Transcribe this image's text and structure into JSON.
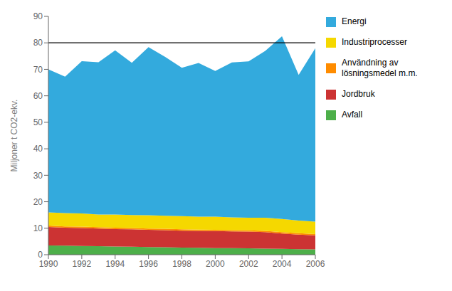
{
  "chart_data": {
    "type": "area",
    "stacked": true,
    "grid": false,
    "legend": "right",
    "ylabel": "Miljoner t CO2-ekv.",
    "x": [
      1990,
      1991,
      1992,
      1993,
      1994,
      1995,
      1996,
      1997,
      1998,
      1999,
      2000,
      2001,
      2002,
      2003,
      2004,
      2005,
      2006
    ],
    "xlim": [
      1990,
      2006
    ],
    "xticks": [
      1990,
      1992,
      1994,
      1996,
      1998,
      2000,
      2002,
      2004,
      2006
    ],
    "ylim": [
      0,
      90
    ],
    "yticks": [
      0,
      10,
      20,
      30,
      40,
      50,
      60,
      70,
      80,
      90
    ],
    "reference_line": 80,
    "series": [
      {
        "name": "Avfall",
        "color": "#4daf4a",
        "values": [
          3.5,
          3.4,
          3.3,
          3.2,
          3.1,
          3.0,
          2.9,
          2.8,
          2.7,
          2.6,
          2.5,
          2.5,
          2.4,
          2.3,
          2.2,
          2.1,
          2.0
        ]
      },
      {
        "name": "Jordbruk",
        "color": "#cc3333",
        "values": [
          7.0,
          6.8,
          6.8,
          6.7,
          6.6,
          6.6,
          6.5,
          6.5,
          6.4,
          6.4,
          6.4,
          6.3,
          6.3,
          6.2,
          5.8,
          5.5,
          5.3
        ]
      },
      {
        "name": "Användning av\nlösningsmedel m.m.",
        "color": "#ff8c00",
        "values": [
          0.5,
          0.5,
          0.5,
          0.5,
          0.5,
          0.5,
          0.5,
          0.5,
          0.5,
          0.5,
          0.5,
          0.5,
          0.5,
          0.5,
          0.5,
          0.5,
          0.5
        ]
      },
      {
        "name": "Industriprocesser",
        "color": "#f5d800",
        "values": [
          5.0,
          5.0,
          5.0,
          4.8,
          5.0,
          4.9,
          5.0,
          4.9,
          5.0,
          4.9,
          5.0,
          4.8,
          4.8,
          5.0,
          5.0,
          4.8,
          4.7
        ]
      },
      {
        "name": "Energi",
        "color": "#33aadd",
        "values": [
          54.0,
          51.5,
          57.5,
          57.5,
          62.0,
          57.5,
          63.5,
          60.0,
          56.0,
          58.0,
          55.0,
          58.5,
          59.0,
          63.0,
          69.0,
          55.0,
          65.5
        ]
      }
    ]
  }
}
